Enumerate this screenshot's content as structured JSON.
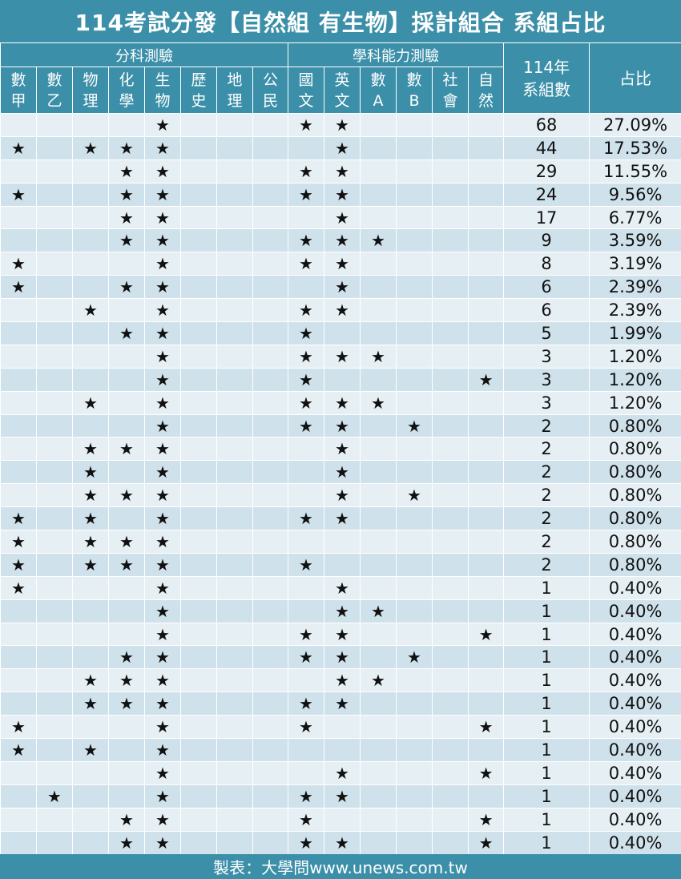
{
  "title": "114考試分發【自然組 有生物】採計組合  系組占比",
  "groups": {
    "left": "分科測驗",
    "right": "學科能力測驗"
  },
  "subjects": [
    [
      "數",
      "甲"
    ],
    [
      "數",
      "乙"
    ],
    [
      "物",
      "理"
    ],
    [
      "化",
      "學"
    ],
    [
      "生",
      "物"
    ],
    [
      "歷",
      "史"
    ],
    [
      "地",
      "理"
    ],
    [
      "公",
      "民"
    ],
    [
      "國",
      "文"
    ],
    [
      "英",
      "文"
    ],
    [
      "數",
      "A"
    ],
    [
      "數",
      "B"
    ],
    [
      "社",
      "會"
    ],
    [
      "自",
      "然"
    ]
  ],
  "count_header": [
    "114年",
    "系組數"
  ],
  "ratio_header": "占比",
  "star": "★",
  "rows": [
    {
      "c": [
        0,
        0,
        0,
        0,
        1,
        0,
        0,
        0,
        1,
        1,
        0,
        0,
        0,
        0
      ],
      "n": "68",
      "p": "27.09%"
    },
    {
      "c": [
        1,
        0,
        1,
        1,
        1,
        0,
        0,
        0,
        0,
        1,
        0,
        0,
        0,
        0
      ],
      "n": "44",
      "p": "17.53%"
    },
    {
      "c": [
        0,
        0,
        0,
        1,
        1,
        0,
        0,
        0,
        1,
        1,
        0,
        0,
        0,
        0
      ],
      "n": "29",
      "p": "11.55%"
    },
    {
      "c": [
        1,
        0,
        0,
        1,
        1,
        0,
        0,
        0,
        1,
        1,
        0,
        0,
        0,
        0
      ],
      "n": "24",
      "p": "9.56%"
    },
    {
      "c": [
        0,
        0,
        0,
        1,
        1,
        0,
        0,
        0,
        0,
        1,
        0,
        0,
        0,
        0
      ],
      "n": "17",
      "p": "6.77%"
    },
    {
      "c": [
        0,
        0,
        0,
        1,
        1,
        0,
        0,
        0,
        1,
        1,
        1,
        0,
        0,
        0
      ],
      "n": "9",
      "p": "3.59%"
    },
    {
      "c": [
        1,
        0,
        0,
        0,
        1,
        0,
        0,
        0,
        1,
        1,
        0,
        0,
        0,
        0
      ],
      "n": "8",
      "p": "3.19%"
    },
    {
      "c": [
        1,
        0,
        0,
        1,
        1,
        0,
        0,
        0,
        0,
        1,
        0,
        0,
        0,
        0
      ],
      "n": "6",
      "p": "2.39%"
    },
    {
      "c": [
        0,
        0,
        1,
        0,
        1,
        0,
        0,
        0,
        1,
        1,
        0,
        0,
        0,
        0
      ],
      "n": "6",
      "p": "2.39%"
    },
    {
      "c": [
        0,
        0,
        0,
        1,
        1,
        0,
        0,
        0,
        1,
        0,
        0,
        0,
        0,
        0
      ],
      "n": "5",
      "p": "1.99%"
    },
    {
      "c": [
        0,
        0,
        0,
        0,
        1,
        0,
        0,
        0,
        1,
        1,
        1,
        0,
        0,
        0
      ],
      "n": "3",
      "p": "1.20%"
    },
    {
      "c": [
        0,
        0,
        0,
        0,
        1,
        0,
        0,
        0,
        1,
        0,
        0,
        0,
        0,
        1
      ],
      "n": "3",
      "p": "1.20%"
    },
    {
      "c": [
        0,
        0,
        1,
        0,
        1,
        0,
        0,
        0,
        1,
        1,
        1,
        0,
        0,
        0
      ],
      "n": "3",
      "p": "1.20%"
    },
    {
      "c": [
        0,
        0,
        0,
        0,
        1,
        0,
        0,
        0,
        1,
        1,
        0,
        1,
        0,
        0
      ],
      "n": "2",
      "p": "0.80%"
    },
    {
      "c": [
        0,
        0,
        1,
        1,
        1,
        0,
        0,
        0,
        0,
        1,
        0,
        0,
        0,
        0
      ],
      "n": "2",
      "p": "0.80%"
    },
    {
      "c": [
        0,
        0,
        1,
        0,
        1,
        0,
        0,
        0,
        0,
        1,
        0,
        0,
        0,
        0
      ],
      "n": "2",
      "p": "0.80%"
    },
    {
      "c": [
        0,
        0,
        1,
        1,
        1,
        0,
        0,
        0,
        0,
        1,
        0,
        1,
        0,
        0
      ],
      "n": "2",
      "p": "0.80%"
    },
    {
      "c": [
        1,
        0,
        1,
        0,
        1,
        0,
        0,
        0,
        1,
        1,
        0,
        0,
        0,
        0
      ],
      "n": "2",
      "p": "0.80%"
    },
    {
      "c": [
        1,
        0,
        1,
        1,
        1,
        0,
        0,
        0,
        0,
        0,
        0,
        0,
        0,
        0
      ],
      "n": "2",
      "p": "0.80%"
    },
    {
      "c": [
        1,
        0,
        1,
        1,
        1,
        0,
        0,
        0,
        1,
        0,
        0,
        0,
        0,
        0
      ],
      "n": "2",
      "p": "0.80%"
    },
    {
      "c": [
        1,
        0,
        0,
        0,
        1,
        0,
        0,
        0,
        0,
        1,
        0,
        0,
        0,
        0
      ],
      "n": "1",
      "p": "0.40%"
    },
    {
      "c": [
        0,
        0,
        0,
        0,
        1,
        0,
        0,
        0,
        0,
        1,
        1,
        0,
        0,
        0
      ],
      "n": "1",
      "p": "0.40%"
    },
    {
      "c": [
        0,
        0,
        0,
        0,
        1,
        0,
        0,
        0,
        1,
        1,
        0,
        0,
        0,
        1
      ],
      "n": "1",
      "p": "0.40%"
    },
    {
      "c": [
        0,
        0,
        0,
        1,
        1,
        0,
        0,
        0,
        1,
        1,
        0,
        1,
        0,
        0
      ],
      "n": "1",
      "p": "0.40%"
    },
    {
      "c": [
        0,
        0,
        1,
        1,
        1,
        0,
        0,
        0,
        0,
        1,
        1,
        0,
        0,
        0
      ],
      "n": "1",
      "p": "0.40%"
    },
    {
      "c": [
        0,
        0,
        1,
        1,
        1,
        0,
        0,
        0,
        1,
        1,
        0,
        0,
        0,
        0
      ],
      "n": "1",
      "p": "0.40%"
    },
    {
      "c": [
        1,
        0,
        0,
        0,
        1,
        0,
        0,
        0,
        1,
        0,
        0,
        0,
        0,
        1
      ],
      "n": "1",
      "p": "0.40%"
    },
    {
      "c": [
        1,
        0,
        1,
        0,
        1,
        0,
        0,
        0,
        0,
        0,
        0,
        0,
        0,
        0
      ],
      "n": "1",
      "p": "0.40%"
    },
    {
      "c": [
        0,
        0,
        0,
        0,
        1,
        0,
        0,
        0,
        0,
        1,
        0,
        0,
        0,
        1
      ],
      "n": "1",
      "p": "0.40%"
    },
    {
      "c": [
        0,
        1,
        0,
        0,
        1,
        0,
        0,
        0,
        1,
        1,
        0,
        0,
        0,
        0
      ],
      "n": "1",
      "p": "0.40%"
    },
    {
      "c": [
        0,
        0,
        0,
        1,
        1,
        0,
        0,
        0,
        1,
        0,
        0,
        0,
        0,
        1
      ],
      "n": "1",
      "p": "0.40%"
    },
    {
      "c": [
        0,
        0,
        0,
        1,
        1,
        0,
        0,
        0,
        1,
        1,
        0,
        0,
        0,
        1
      ],
      "n": "1",
      "p": "0.40%"
    }
  ],
  "footer": "製表：大學問www.unews.com.tw",
  "colors": {
    "header": "#3b8fa8",
    "row_light": "#e6f0f4",
    "row_dark": "#cfe1ea"
  }
}
